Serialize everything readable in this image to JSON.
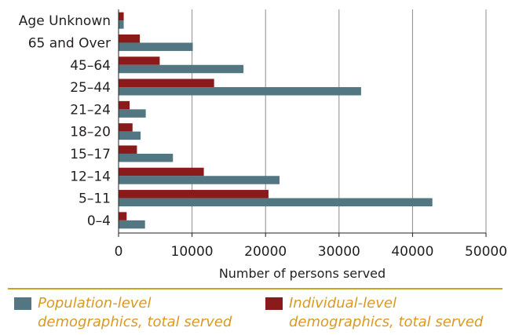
{
  "chart_data": {
    "type": "bar",
    "orientation": "horizontal",
    "title": "",
    "xlabel": "Number of persons served",
    "ylabel": "",
    "xlim": [
      0,
      50000
    ],
    "x_ticks": [
      0,
      10000,
      20000,
      30000,
      40000,
      50000
    ],
    "x_tick_labels": [
      "0",
      "10000",
      "20000",
      "30000",
      "40000",
      "50000"
    ],
    "grid": "vertical",
    "legend_position": "bottom",
    "categories": [
      "Age Unknown",
      "65 and Over",
      "45–64",
      "25–44",
      "21–24",
      "18–20",
      "15–17",
      "12–14",
      "5–11",
      "0–4"
    ],
    "series": [
      {
        "name": "Individual-level demographics, total served",
        "color": "#8b1a1a",
        "values": [
          700,
          2900,
          5600,
          13000,
          1500,
          1900,
          2500,
          11600,
          20400,
          1100
        ]
      },
      {
        "name": "Population-level demographics, total served",
        "color": "#527682",
        "values": [
          700,
          10100,
          17000,
          33000,
          3700,
          3000,
          7400,
          21900,
          42700,
          3600
        ]
      }
    ]
  },
  "legend": {
    "items": [
      {
        "line1": "Population-level",
        "line2": "demographics, total served",
        "color": "#527682"
      },
      {
        "line1": "Individual-level",
        "line2": "demographics, total served",
        "color": "#8b1a1a"
      }
    ]
  }
}
